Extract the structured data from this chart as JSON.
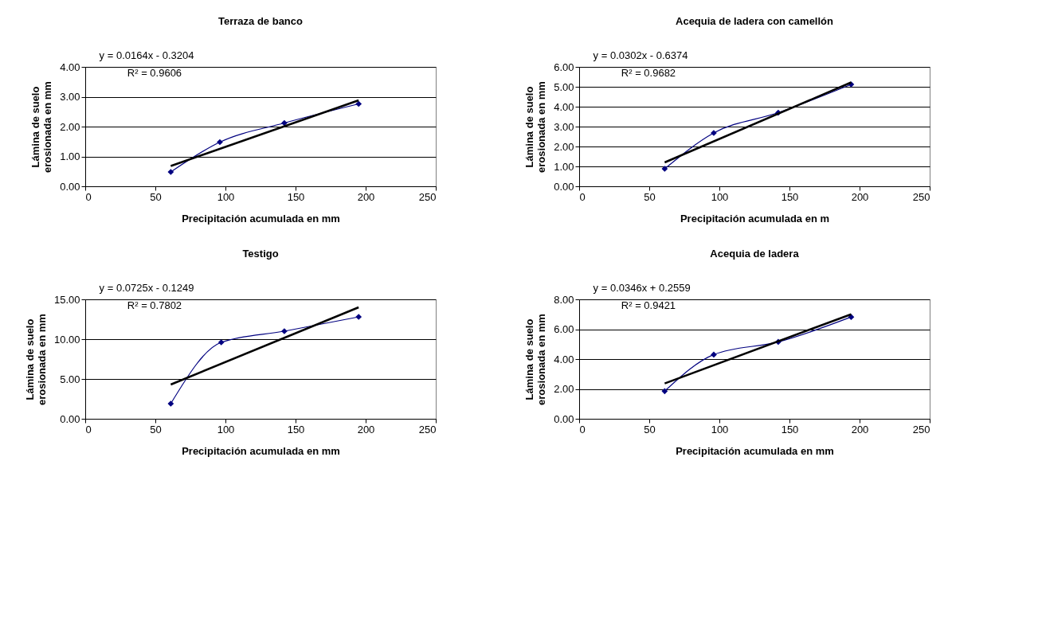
{
  "chart_data": [
    {
      "type": "line",
      "title": "Terraza de banco",
      "xlabel": "Precipitación acumulada en mm",
      "ylabel": "Lámina de suelo erosionada en mm",
      "xlim": [
        0,
        250
      ],
      "xticks": [
        0,
        50,
        100,
        150,
        200,
        250
      ],
      "ylim": [
        0,
        4
      ],
      "yticks": [
        {
          "value": 0,
          "label": "0.00"
        },
        {
          "value": 1,
          "label": "1.00"
        },
        {
          "value": 2,
          "label": "2.00"
        },
        {
          "value": 3,
          "label": "3.00"
        },
        {
          "value": 4,
          "label": "4.00"
        }
      ],
      "grid": "y",
      "annotations": [
        "y = 0.0164x - 0.3204",
        "R² = 0.9606"
      ],
      "series": [
        {
          "color": "#000080",
          "marker": "diamond",
          "x": [
            61,
            96,
            142,
            195
          ],
          "values": [
            0.48,
            1.48,
            2.12,
            2.76
          ]
        },
        {
          "color": "#000000",
          "marker": "none",
          "x": [
            61,
            195
          ],
          "values": [
            0.68,
            2.88
          ]
        }
      ]
    },
    {
      "type": "line",
      "title": "Acequia de ladera con camellón",
      "xlabel": "Precipitación acumulada en m",
      "ylabel": "Lámina de suelo erosionada en mm",
      "xlim": [
        0,
        250
      ],
      "xticks": [
        0,
        50,
        100,
        150,
        200,
        250
      ],
      "ylim": [
        0,
        6
      ],
      "yticks": [
        {
          "value": 0,
          "label": "0.00"
        },
        {
          "value": 1,
          "label": "1.00"
        },
        {
          "value": 2,
          "label": "2.00"
        },
        {
          "value": 3,
          "label": "3.00"
        },
        {
          "value": 4,
          "label": "4.00"
        },
        {
          "value": 5,
          "label": "5.00"
        },
        {
          "value": 6,
          "label": "6.00"
        }
      ],
      "grid": "y",
      "annotations": [
        "y = 0.0302x - 0.6374",
        "R² = 0.9682"
      ],
      "series": [
        {
          "color": "#000080",
          "marker": "diamond",
          "x": [
            61,
            96,
            142,
            194
          ],
          "values": [
            0.88,
            2.68,
            3.7,
            5.12
          ]
        },
        {
          "color": "#000000",
          "marker": "none",
          "x": [
            61,
            194
          ],
          "values": [
            1.2,
            5.22
          ]
        }
      ]
    },
    {
      "type": "line",
      "title": "Testigo",
      "xlabel": "Precipitación acumulada en mm",
      "ylabel": "Lámina de suelo erosionada en mm",
      "xlim": [
        0,
        250
      ],
      "xticks": [
        0,
        50,
        100,
        150,
        200,
        250
      ],
      "ylim": [
        0,
        15
      ],
      "yticks": [
        {
          "value": 0,
          "label": "0.00"
        },
        {
          "value": 5,
          "label": "5.00"
        },
        {
          "value": 10,
          "label": "10.00"
        },
        {
          "value": 15,
          "label": "15.00"
        }
      ],
      "grid": "y",
      "annotations": [
        "y = 0.0725x - 0.1249",
        "R² = 0.7802"
      ],
      "series": [
        {
          "color": "#000080",
          "marker": "diamond",
          "x": [
            61,
            97,
            142,
            195
          ],
          "values": [
            1.9,
            9.6,
            11.0,
            12.8
          ]
        },
        {
          "color": "#000000",
          "marker": "none",
          "x": [
            61,
            195
          ],
          "values": [
            4.3,
            14.0
          ]
        }
      ]
    },
    {
      "type": "line",
      "title": "Acequia de ladera",
      "xlabel": "Precipitación acumulada en mm",
      "ylabel": "Lámina de suelo erosionada en mm",
      "xlim": [
        0,
        250
      ],
      "xticks": [
        0,
        50,
        100,
        150,
        200,
        250
      ],
      "ylim": [
        0,
        8
      ],
      "yticks": [
        {
          "value": 0,
          "label": "0.00"
        },
        {
          "value": 2,
          "label": "2.00"
        },
        {
          "value": 4,
          "label": "4.00"
        },
        {
          "value": 6,
          "label": "6.00"
        },
        {
          "value": 8,
          "label": "8.00"
        }
      ],
      "grid": "y",
      "annotations": [
        "y = 0.0346x + 0.2559",
        "R² = 0.9421"
      ],
      "series": [
        {
          "color": "#000080",
          "marker": "diamond",
          "x": [
            61,
            96,
            142,
            194
          ],
          "values": [
            1.85,
            4.3,
            5.15,
            6.82
          ]
        },
        {
          "color": "#000000",
          "marker": "none",
          "x": [
            61,
            194
          ],
          "values": [
            2.37,
            7.0
          ]
        }
      ]
    }
  ]
}
